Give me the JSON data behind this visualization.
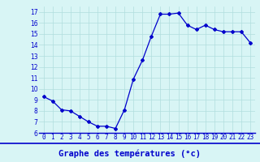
{
  "x": [
    0,
    1,
    2,
    3,
    4,
    5,
    6,
    7,
    8,
    9,
    10,
    11,
    12,
    13,
    14,
    15,
    16,
    17,
    18,
    19,
    20,
    21,
    22,
    23
  ],
  "y": [
    9.3,
    8.9,
    8.1,
    8.0,
    7.5,
    7.0,
    6.6,
    6.6,
    6.4,
    8.1,
    10.9,
    12.6,
    14.8,
    16.8,
    16.8,
    16.9,
    15.8,
    15.4,
    15.8,
    15.4,
    15.2,
    15.2,
    15.2,
    14.2
  ],
  "line_color": "#0000cc",
  "marker": "D",
  "marker_size": 2.0,
  "line_width": 0.9,
  "bg_color": "#d8f5f5",
  "grid_color": "#b0dede",
  "xlabel": "Graphe des températures (°c)",
  "xtick_labels": [
    "0",
    "1",
    "2",
    "3",
    "4",
    "5",
    "6",
    "7",
    "8",
    "9",
    "10",
    "11",
    "12",
    "13",
    "14",
    "15",
    "16",
    "17",
    "18",
    "19",
    "20",
    "21",
    "22",
    "23"
  ],
  "ylabel_ticks": [
    6,
    7,
    8,
    9,
    10,
    11,
    12,
    13,
    14,
    15,
    16,
    17
  ],
  "xlim": [
    -0.5,
    23.5
  ],
  "ylim": [
    6,
    17.5
  ],
  "tick_label_color": "#0000cc",
  "tick_fontsize": 5.5,
  "xlabel_fontsize": 7.5,
  "separator_color": "#0000cc"
}
